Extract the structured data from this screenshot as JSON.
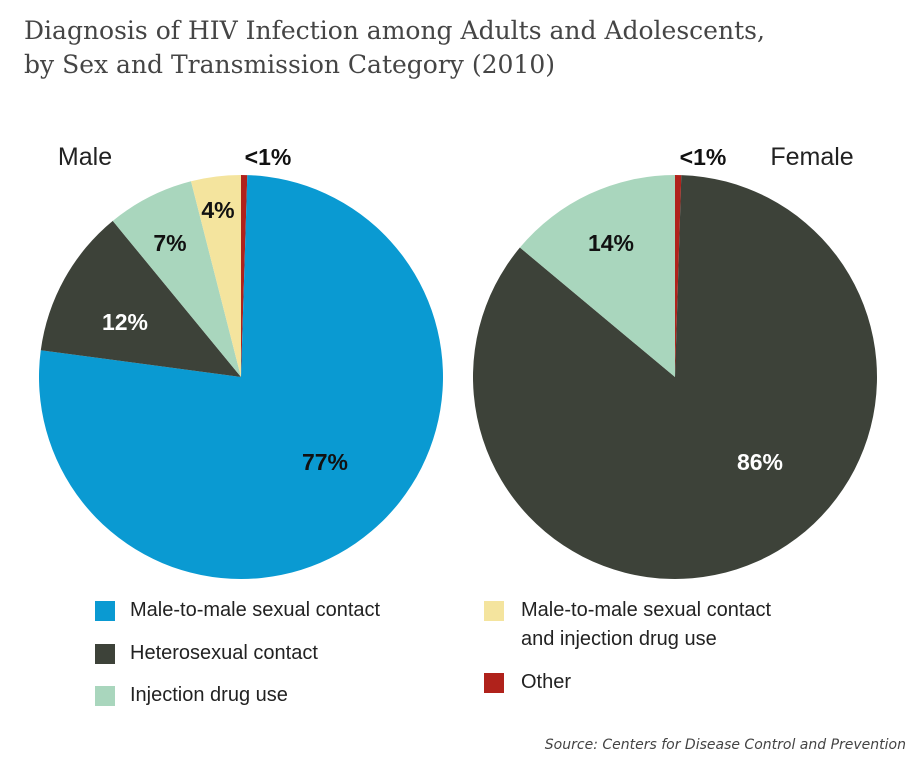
{
  "title_lines": [
    "Diagnosis of HIV Infection among Adults and Adolescents,",
    "by Sex and Transmission Category (2010)"
  ],
  "source": "Source: Centers for Disease Control and Prevention",
  "colors": {
    "Male-to-male sexual contact": "#0a9ad2",
    "Heterosexual contact": "#3d4239",
    "Injection drug use": "#a9d6bd",
    "Male-to-male sexual contact and injection drug use": "#f4e49e",
    "Other": "#b0221b"
  },
  "legend": [
    {
      "label": "Male-to-male sexual contact",
      "key": "Male-to-male sexual contact"
    },
    {
      "label": "Heterosexual contact",
      "key": "Heterosexual contact"
    },
    {
      "label": "Injection drug use",
      "key": "Injection drug use"
    },
    {
      "label_lines": [
        "Male-to-male sexual contact",
        "and injection drug use"
      ],
      "key": "Male-to-male sexual contact and injection drug use"
    },
    {
      "label": "Other",
      "key": "Other"
    }
  ],
  "chart_data": [
    {
      "type": "pie",
      "title": "Male",
      "direction": "clockwise from top",
      "slices": [
        {
          "category": "Other",
          "value": 0.5,
          "label": "<1%"
        },
        {
          "category": "Male-to-male sexual contact",
          "value": 77,
          "label": "77%"
        },
        {
          "category": "Heterosexual contact",
          "value": 12,
          "label": "12%"
        },
        {
          "category": "Injection drug use",
          "value": 7,
          "label": "7%"
        },
        {
          "category": "Male-to-male sexual contact and injection drug use",
          "value": 4,
          "label": "4%"
        }
      ]
    },
    {
      "type": "pie",
      "title": "Female",
      "direction": "clockwise from top",
      "slices": [
        {
          "category": "Other",
          "value": 0.5,
          "label": "<1%"
        },
        {
          "category": "Heterosexual contact",
          "value": 86,
          "label": "86%"
        },
        {
          "category": "Injection drug use",
          "value": 14,
          "label": "14%"
        }
      ]
    }
  ]
}
